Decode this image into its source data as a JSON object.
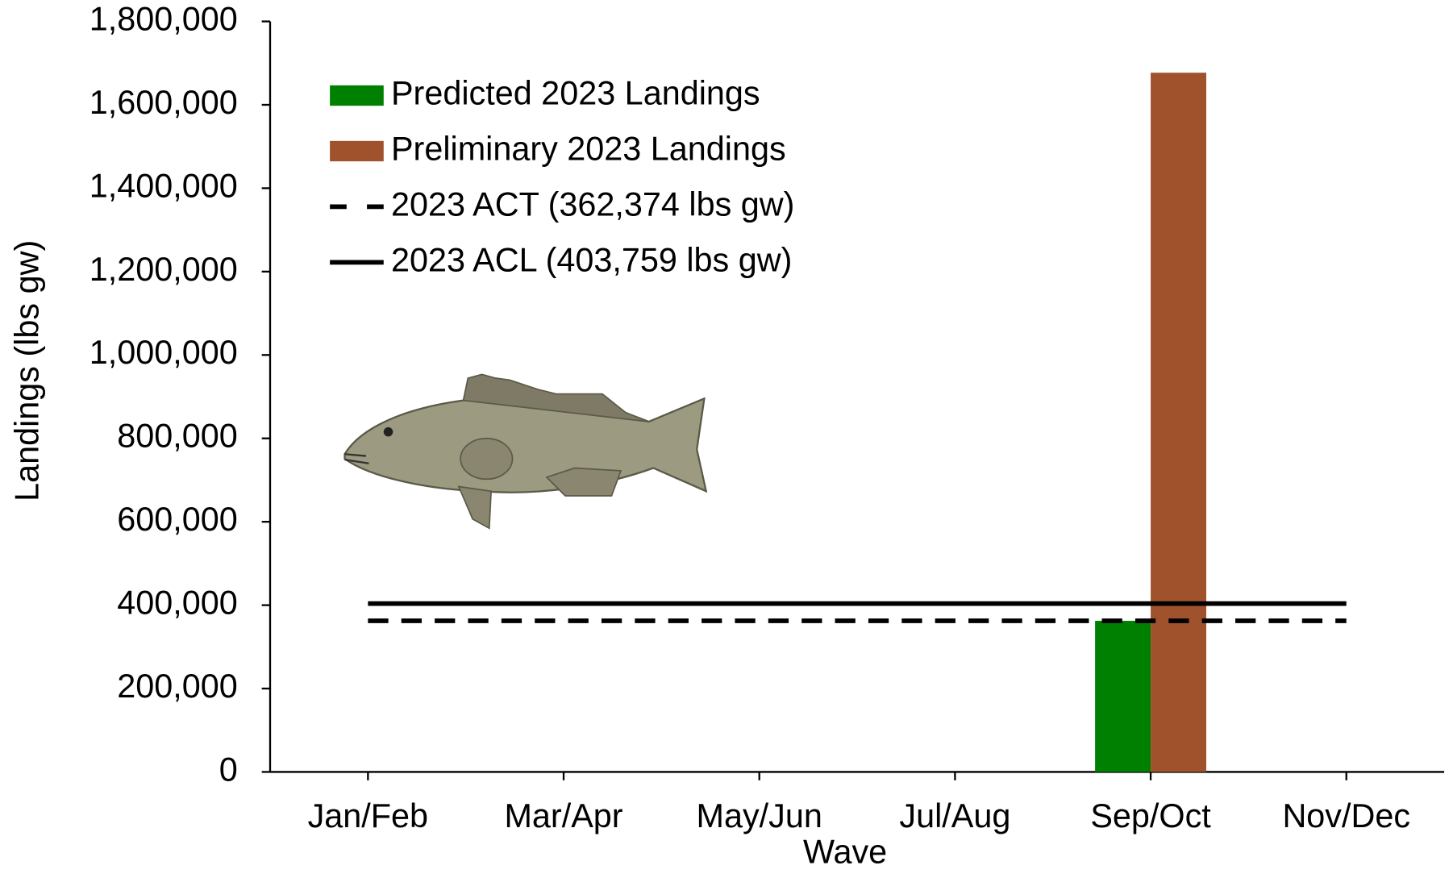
{
  "chart_data": {
    "type": "bar",
    "x_label": "Wave",
    "y_label": "Landings (lbs gw)",
    "categories": [
      "Jan/Feb",
      "Mar/Apr",
      "May/Jun",
      "Jul/Aug",
      "Sep/Oct",
      "Nov/Dec"
    ],
    "series": [
      {
        "name": "Predicted 2023 Landings",
        "color": "#008000",
        "values": [
          null,
          null,
          null,
          null,
          362374,
          null
        ]
      },
      {
        "name": "Preliminary 2023 Landings",
        "color": "#a0522d",
        "values": [
          null,
          null,
          null,
          null,
          1677000,
          null
        ]
      }
    ],
    "reference_lines": [
      {
        "name": "2023 ACT (362,374 lbs gw)",
        "value": 362374,
        "style": "dashed",
        "color": "#000000"
      },
      {
        "name": "2023 ACL (403,759 lbs gw)",
        "value": 403759,
        "style": "solid",
        "color": "#000000"
      }
    ],
    "ylim": [
      0,
      1800000
    ],
    "yticks": [
      0,
      {
        "value": 200000,
        "label": "200,000"
      },
      {
        "value": 400000,
        "label": "400,000"
      },
      {
        "value": 600000,
        "label": "600,000"
      },
      {
        "value": 800000,
        "label": "800,000"
      },
      {
        "value": 1000000,
        "label": "1,000,000"
      },
      {
        "value": 1200000,
        "label": "1,200,000"
      },
      {
        "value": 1400000,
        "label": "1,400,000"
      },
      {
        "value": 1600000,
        "label": "1,600,000"
      },
      {
        "value": 1800000,
        "label": "1,800,000"
      }
    ],
    "grid": false,
    "legend_position": "upper-left"
  }
}
